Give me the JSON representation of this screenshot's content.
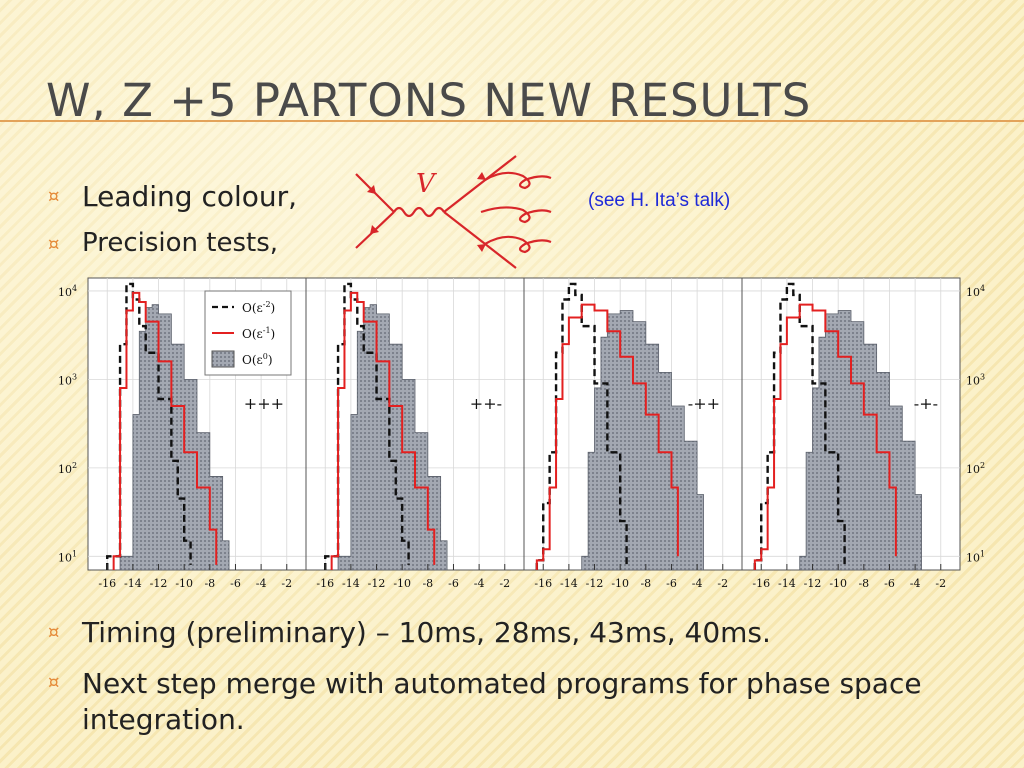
{
  "slide": {
    "title": "W, Z +5 partons new results",
    "bullets_top": [
      "Leading colour,",
      "Precision tests,"
    ],
    "note": "(see H. Ita’s talk)",
    "diagram_label": "V",
    "bullets_bottom": [
      "Timing (preliminary) – 10ms, 28ms, 43ms, 40ms.",
      "Next step merge with automated programs for phase space integration."
    ],
    "bullet_marker": "¤"
  },
  "colors": {
    "accent": "#e3a35a",
    "title": "#4a4a4a",
    "note": "#1f2ad8",
    "red": "#e32020",
    "fill": "#9ea3ad"
  },
  "chart_data": {
    "type": "area",
    "log_y": true,
    "ylim": [
      7,
      14000
    ],
    "xlim": [
      -17.5,
      -0.5
    ],
    "xticks": [
      "-16",
      "-14",
      "-12",
      "-10",
      "-8",
      "-6",
      "-4",
      "-2"
    ],
    "yticks": [
      "10^1",
      "10^2",
      "10^3",
      "10^4"
    ],
    "legend": [
      "O(ε^-2)",
      "O(ε^-1)",
      "O(ε^0)"
    ],
    "legend_position": "top-right of first panel",
    "panels": [
      {
        "label": "+++",
        "series": [
          {
            "name": "O(ε^-2)",
            "style": "dashed-black",
            "x": [
              -16,
              -15,
              -14.5,
              -14,
              -13.5,
              -13,
              -12,
              -11,
              -10.5,
              -10,
              -9.5
            ],
            "y": [
              10,
              2500,
              12000,
              8000,
              4000,
              2000,
              600,
              120,
              45,
              15,
              8
            ]
          },
          {
            "name": "O(ε^-1)",
            "style": "solid-red",
            "x": [
              -15.5,
              -15,
              -14.5,
              -14,
              -13.5,
              -13,
              -12,
              -11,
              -10,
              -9,
              -8,
              -7.5
            ],
            "y": [
              10,
              800,
              6000,
              9500,
              7500,
              4500,
              1600,
              500,
              150,
              60,
              20,
              8
            ]
          },
          {
            "name": "O(ε^0)",
            "style": "filled",
            "x": [
              -15,
              -14,
              -13.5,
              -13,
              -12.5,
              -12,
              -11,
              -10,
              -9,
              -8,
              -7,
              -6.5
            ],
            "y": [
              10,
              400,
              3500,
              6500,
              7000,
              5500,
              2500,
              1000,
              250,
              80,
              15,
              8
            ]
          }
        ]
      },
      {
        "label": "++-",
        "series": [
          {
            "name": "O(ε^-2)",
            "style": "dashed-black",
            "x": [
              -16,
              -15,
              -14.5,
              -14,
              -13.5,
              -13,
              -12,
              -11,
              -10.5,
              -10,
              -9.5
            ],
            "y": [
              10,
              2500,
              12000,
              8000,
              4000,
              2000,
              600,
              120,
              45,
              15,
              8
            ]
          },
          {
            "name": "O(ε^-1)",
            "style": "solid-red",
            "x": [
              -15.5,
              -15,
              -14.5,
              -14,
              -13.5,
              -13,
              -12,
              -11,
              -10,
              -9,
              -8,
              -7.5
            ],
            "y": [
              10,
              800,
              6000,
              9500,
              7500,
              4500,
              1600,
              500,
              150,
              60,
              20,
              8
            ]
          },
          {
            "name": "O(ε^0)",
            "style": "filled",
            "x": [
              -15,
              -14,
              -13.5,
              -13,
              -12.5,
              -12,
              -11,
              -10,
              -9,
              -8,
              -7,
              -6.5
            ],
            "y": [
              10,
              400,
              3500,
              6500,
              7000,
              5500,
              2500,
              1000,
              250,
              80,
              15,
              8
            ]
          }
        ]
      },
      {
        "label": "-++",
        "series": [
          {
            "name": "O(ε^-2)",
            "style": "dashed-black",
            "x": [
              -16.5,
              -16,
              -15.5,
              -15,
              -14.5,
              -14,
              -13.5,
              -13,
              -12,
              -11,
              -10,
              -9.5
            ],
            "y": [
              9,
              40,
              150,
              2000,
              8000,
              12000,
              9000,
              4000,
              900,
              150,
              25,
              8
            ]
          },
          {
            "name": "O(ε^-1)",
            "style": "solid-red",
            "x": [
              -16.5,
              -16,
              -15.5,
              -15,
              -14.5,
              -14,
              -13,
              -12,
              -11,
              -10,
              -9,
              -8,
              -7,
              -6,
              -5.5
            ],
            "y": [
              9,
              12,
              60,
              600,
              2500,
              5000,
              7000,
              6000,
              3500,
              1800,
              900,
              400,
              150,
              60,
              10
            ]
          },
          {
            "name": "O(ε^0)",
            "style": "filled",
            "x": [
              -13,
              -12.5,
              -12,
              -11.5,
              -11,
              -10,
              -9,
              -8,
              -7,
              -6,
              -5,
              -4,
              -3.5
            ],
            "y": [
              10,
              150,
              800,
              3000,
              5500,
              6000,
              4500,
              2500,
              1200,
              500,
              200,
              50,
              8
            ]
          }
        ]
      },
      {
        "label": "-+-",
        "series": [
          {
            "name": "O(ε^-2)",
            "style": "dashed-black",
            "x": [
              -16.5,
              -16,
              -15.5,
              -15,
              -14.5,
              -14,
              -13.5,
              -13,
              -12,
              -11,
              -10,
              -9.5
            ],
            "y": [
              9,
              40,
              150,
              2000,
              8000,
              12000,
              9000,
              4000,
              900,
              150,
              25,
              8
            ]
          },
          {
            "name": "O(ε^-1)",
            "style": "solid-red",
            "x": [
              -16.5,
              -16,
              -15.5,
              -15,
              -14.5,
              -14,
              -13,
              -12,
              -11,
              -10,
              -9,
              -8,
              -7,
              -6,
              -5.5
            ],
            "y": [
              9,
              12,
              60,
              600,
              2500,
              5000,
              7000,
              6000,
              3500,
              1800,
              900,
              400,
              150,
              60,
              10
            ]
          },
          {
            "name": "O(ε^0)",
            "style": "filled",
            "x": [
              -13,
              -12.5,
              -12,
              -11.5,
              -11,
              -10,
              -9,
              -8,
              -7,
              -6,
              -5,
              -4,
              -3.5
            ],
            "y": [
              10,
              150,
              800,
              3000,
              5500,
              6000,
              4500,
              2500,
              1200,
              500,
              200,
              50,
              8
            ]
          }
        ]
      }
    ]
  }
}
